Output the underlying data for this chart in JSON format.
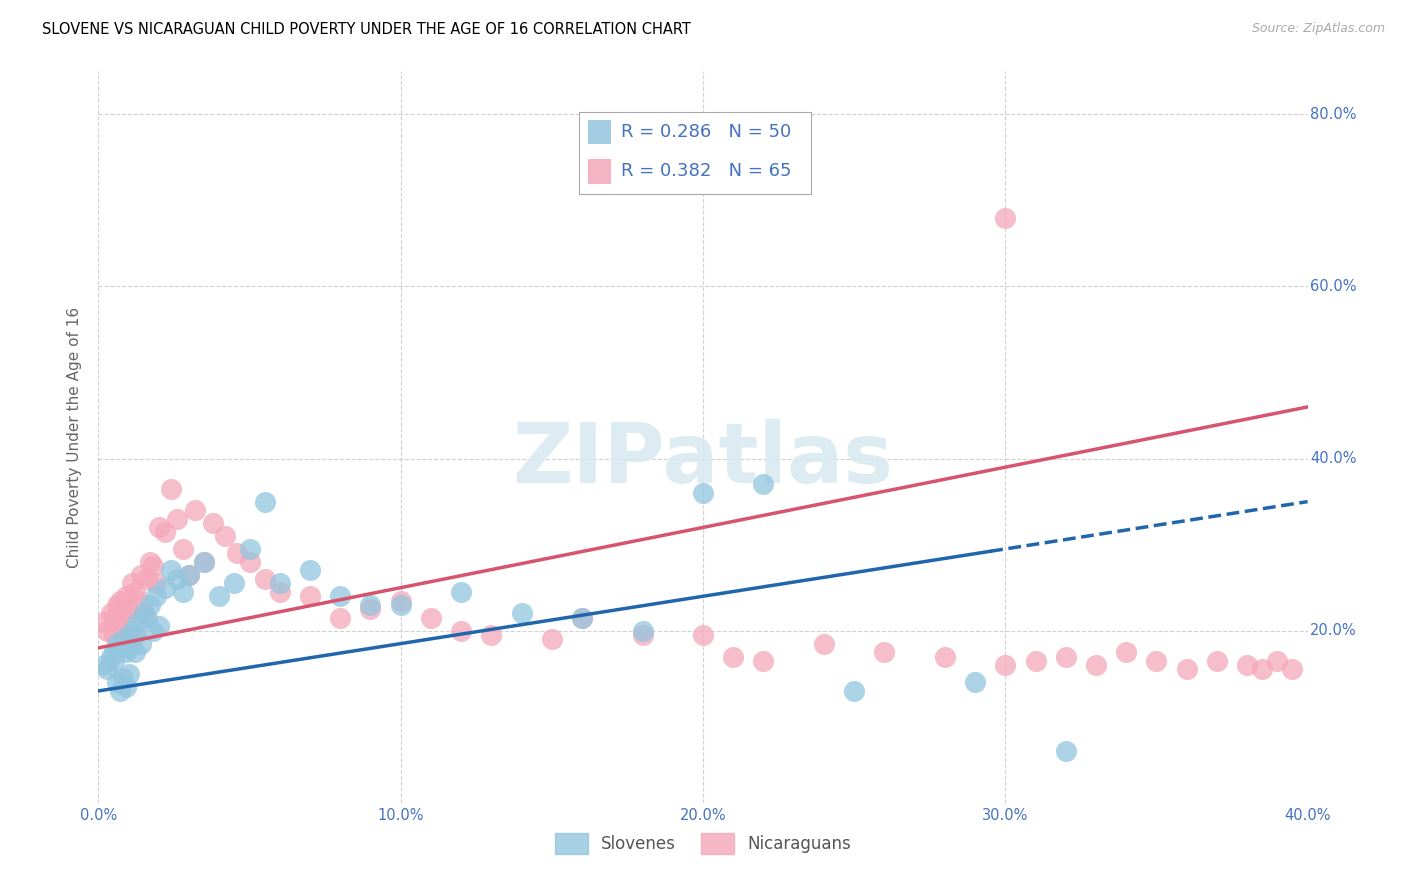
{
  "title": "SLOVENE VS NICARAGUAN CHILD POVERTY UNDER THE AGE OF 16 CORRELATION CHART",
  "source": "Source: ZipAtlas.com",
  "ylabel": "Child Poverty Under the Age of 16",
  "xlim": [
    0.0,
    0.4
  ],
  "ylim": [
    0.0,
    0.85
  ],
  "xticks": [
    0.0,
    0.1,
    0.2,
    0.3,
    0.4
  ],
  "yticks": [
    0.2,
    0.4,
    0.6,
    0.8
  ],
  "blue_scatter_color": "#92c5de",
  "pink_scatter_color": "#f4a7b9",
  "blue_line_color": "#2166ac",
  "pink_line_color": "#d6546e",
  "legend_label_blue": "Slovenes",
  "legend_label_pink": "Nicaraguans",
  "legend_r_blue": "R = 0.286",
  "legend_n_blue": "N = 50",
  "legend_r_pink": "R = 0.382",
  "legend_n_pink": "N = 65",
  "grid_color": "#cccccc",
  "background_color": "#ffffff",
  "title_fontsize": 10.5,
  "tick_fontsize": 10.5,
  "label_fontsize": 11,
  "source_fontsize": 9,
  "legend_fontsize": 13,
  "tick_color": "#4472c4",
  "slovene_x": [
    0.002,
    0.003,
    0.004,
    0.005,
    0.005,
    0.006,
    0.006,
    0.007,
    0.007,
    0.008,
    0.008,
    0.009,
    0.009,
    0.01,
    0.01,
    0.011,
    0.012,
    0.012,
    0.013,
    0.014,
    0.015,
    0.016,
    0.017,
    0.018,
    0.019,
    0.02,
    0.022,
    0.024,
    0.026,
    0.028,
    0.03,
    0.035,
    0.04,
    0.045,
    0.05,
    0.055,
    0.06,
    0.07,
    0.08,
    0.09,
    0.1,
    0.12,
    0.14,
    0.16,
    0.18,
    0.2,
    0.22,
    0.25,
    0.29,
    0.32
  ],
  "slovene_y": [
    0.16,
    0.155,
    0.17,
    0.175,
    0.165,
    0.185,
    0.14,
    0.18,
    0.13,
    0.19,
    0.145,
    0.175,
    0.135,
    0.15,
    0.18,
    0.2,
    0.195,
    0.175,
    0.21,
    0.185,
    0.22,
    0.215,
    0.23,
    0.2,
    0.24,
    0.205,
    0.25,
    0.27,
    0.26,
    0.245,
    0.265,
    0.28,
    0.24,
    0.255,
    0.295,
    0.35,
    0.255,
    0.27,
    0.24,
    0.23,
    0.23,
    0.245,
    0.22,
    0.215,
    0.2,
    0.36,
    0.37,
    0.13,
    0.14,
    0.06
  ],
  "nicaraguan_x": [
    0.002,
    0.003,
    0.004,
    0.005,
    0.005,
    0.006,
    0.007,
    0.007,
    0.008,
    0.009,
    0.009,
    0.01,
    0.01,
    0.011,
    0.012,
    0.013,
    0.014,
    0.015,
    0.016,
    0.017,
    0.018,
    0.019,
    0.02,
    0.022,
    0.024,
    0.026,
    0.028,
    0.03,
    0.032,
    0.035,
    0.038,
    0.042,
    0.046,
    0.05,
    0.055,
    0.06,
    0.07,
    0.08,
    0.09,
    0.1,
    0.11,
    0.12,
    0.13,
    0.15,
    0.16,
    0.18,
    0.2,
    0.21,
    0.22,
    0.24,
    0.26,
    0.28,
    0.3,
    0.31,
    0.32,
    0.33,
    0.34,
    0.35,
    0.36,
    0.37,
    0.38,
    0.385,
    0.39,
    0.395,
    0.3
  ],
  "nicaraguan_y": [
    0.21,
    0.2,
    0.22,
    0.215,
    0.195,
    0.23,
    0.205,
    0.235,
    0.225,
    0.215,
    0.24,
    0.225,
    0.195,
    0.255,
    0.245,
    0.235,
    0.265,
    0.22,
    0.26,
    0.28,
    0.275,
    0.255,
    0.32,
    0.315,
    0.365,
    0.33,
    0.295,
    0.265,
    0.34,
    0.28,
    0.325,
    0.31,
    0.29,
    0.28,
    0.26,
    0.245,
    0.24,
    0.215,
    0.225,
    0.235,
    0.215,
    0.2,
    0.195,
    0.19,
    0.215,
    0.195,
    0.195,
    0.17,
    0.165,
    0.185,
    0.175,
    0.17,
    0.16,
    0.165,
    0.17,
    0.16,
    0.175,
    0.165,
    0.155,
    0.165,
    0.16,
    0.155,
    0.165,
    0.155,
    0.68
  ]
}
